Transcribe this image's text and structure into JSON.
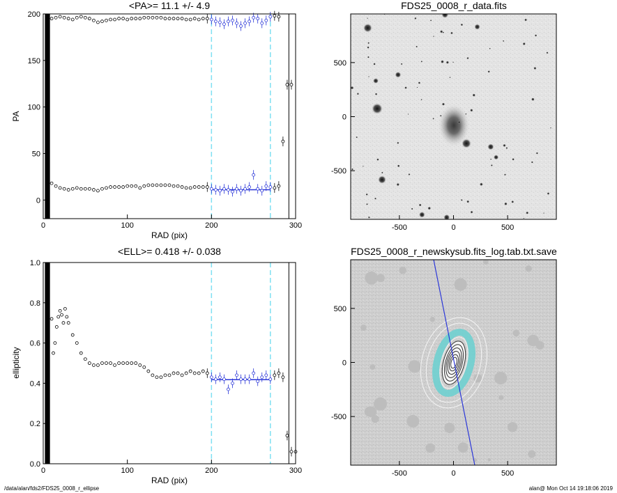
{
  "chart_data": [
    {
      "type": "scatter",
      "title": "<PA>=  11.1 +/-   4.9",
      "xlabel": "RAD (pix)",
      "ylabel": "PA",
      "xlim": [
        0,
        300
      ],
      "ylim": [
        -20,
        200
      ],
      "xticks": [
        0,
        100,
        200,
        300
      ],
      "yticks": [
        0,
        50,
        100,
        150,
        200
      ],
      "fit_range_markers": [
        200,
        270
      ],
      "mean_line": {
        "value": 11.1,
        "x_range": [
          200,
          270
        ],
        "color": "#2a36d8"
      },
      "series": [
        {
          "x": [
            10,
            15,
            20,
            25,
            30,
            35,
            40,
            45,
            50,
            55,
            60,
            65,
            70,
            75,
            80,
            85,
            90,
            95,
            100,
            105,
            110,
            115,
            120,
            125,
            130,
            135,
            140,
            145,
            150,
            155,
            160,
            165,
            170,
            175,
            180,
            185,
            190,
            195,
            200,
            205,
            210,
            215,
            220,
            225,
            230,
            235,
            240,
            245,
            250,
            255,
            260,
            265,
            270,
            275,
            280,
            290,
            295
          ],
          "y": [
            195,
            196,
            197,
            196,
            195,
            194,
            196,
            197,
            196,
            195,
            193,
            191,
            192,
            193,
            194,
            194,
            195,
            195,
            194,
            195,
            195,
            195,
            196,
            196,
            196,
            196,
            196,
            195,
            195,
            195,
            195,
            195,
            194,
            194,
            195,
            194,
            195,
            195,
            194,
            192,
            191,
            189,
            192,
            193,
            190,
            187,
            190,
            192,
            196,
            195,
            190,
            193,
            197,
            198,
            197,
            124,
            124
          ]
        },
        {
          "x": [
            10,
            15,
            20,
            25,
            30,
            35,
            40,
            45,
            50,
            55,
            60,
            65,
            70,
            75,
            80,
            85,
            90,
            95,
            100,
            105,
            110,
            115,
            120,
            125,
            130,
            135,
            140,
            145,
            150,
            155,
            160,
            165,
            170,
            175,
            180,
            185,
            190,
            195,
            200,
            205,
            210,
            215,
            220,
            225,
            230,
            235,
            240,
            245,
            250,
            255,
            260,
            265,
            270,
            275,
            280,
            285
          ],
          "y": [
            18,
            15,
            13,
            12,
            11,
            12,
            13,
            12,
            12,
            12,
            11,
            10,
            12,
            13,
            14,
            14,
            14,
            14,
            15,
            15,
            15,
            13,
            15,
            16,
            16,
            16,
            16,
            16,
            16,
            15,
            15,
            14,
            13,
            13,
            14,
            14,
            14,
            14,
            12,
            11,
            10,
            12,
            11,
            9,
            12,
            10,
            12,
            14,
            27,
            12,
            10,
            15,
            14,
            13,
            15,
            63
          ]
        }
      ]
    },
    {
      "type": "scatter",
      "title": "<ELL>= 0.418 +/-  0.038",
      "xlabel": "RAD (pix)",
      "ylabel": "ellipticity",
      "xlim": [
        0,
        300
      ],
      "ylim": [
        0.0,
        1.0
      ],
      "xticks": [
        0,
        100,
        200,
        300
      ],
      "yticks": [
        0.0,
        0.2,
        0.4,
        0.6,
        0.8,
        1.0
      ],
      "fit_range_markers": [
        200,
        270
      ],
      "mean_line": {
        "value": 0.418,
        "x_range": [
          200,
          270
        ],
        "color": "#2a36d8"
      },
      "series": [
        {
          "x": [
            10,
            12,
            14,
            16,
            18,
            20,
            22,
            24,
            26,
            28,
            30,
            35,
            40,
            45,
            50,
            55,
            60,
            65,
            70,
            75,
            80,
            85,
            90,
            95,
            100,
            105,
            110,
            115,
            120,
            125,
            130,
            135,
            140,
            145,
            150,
            155,
            160,
            165,
            170,
            175,
            180,
            185,
            190,
            195,
            200,
            205,
            210,
            215,
            220,
            225,
            230,
            235,
            240,
            245,
            250,
            255,
            260,
            265,
            270,
            275,
            280,
            285,
            290,
            295,
            300
          ],
          "y": [
            0.72,
            0.55,
            0.6,
            0.68,
            0.73,
            0.76,
            0.74,
            0.7,
            0.77,
            0.73,
            0.7,
            0.64,
            0.6,
            0.55,
            0.52,
            0.5,
            0.49,
            0.49,
            0.5,
            0.5,
            0.5,
            0.49,
            0.5,
            0.5,
            0.5,
            0.5,
            0.5,
            0.49,
            0.48,
            0.46,
            0.44,
            0.43,
            0.43,
            0.44,
            0.44,
            0.45,
            0.45,
            0.44,
            0.45,
            0.46,
            0.45,
            0.45,
            0.46,
            0.45,
            0.43,
            0.42,
            0.43,
            0.42,
            0.37,
            0.4,
            0.44,
            0.42,
            0.42,
            0.42,
            0.45,
            0.41,
            0.43,
            0.44,
            0.42,
            0.44,
            0.45,
            0.43,
            0.14,
            0.06,
            0.06
          ]
        }
      ]
    }
  ],
  "images": [
    {
      "title": "FDS25_0008_r_data.fits",
      "xticks": [
        -500,
        0,
        500
      ],
      "yticks": [
        500,
        0,
        -500
      ],
      "range": [
        -950,
        950
      ]
    },
    {
      "title": "FDS25_0008_r_newskysub.fits_log.tab.txt.save",
      "xticks": [
        -500,
        0,
        500
      ],
      "yticks": [
        500,
        0,
        -500
      ],
      "range": [
        -950,
        950
      ],
      "overlay_colors": {
        "line": "#2a36d8",
        "band": "#6ecfcf",
        "contours": "#333333"
      }
    }
  ],
  "footer": {
    "left": "/data/alan/fds2/FDS25_0008_r_ellipse",
    "right": "alan@  Mon Oct 14 19:18:06 2019"
  },
  "colors": {
    "marker_line": "#7fe1f2",
    "fit": "#2a36d8"
  }
}
